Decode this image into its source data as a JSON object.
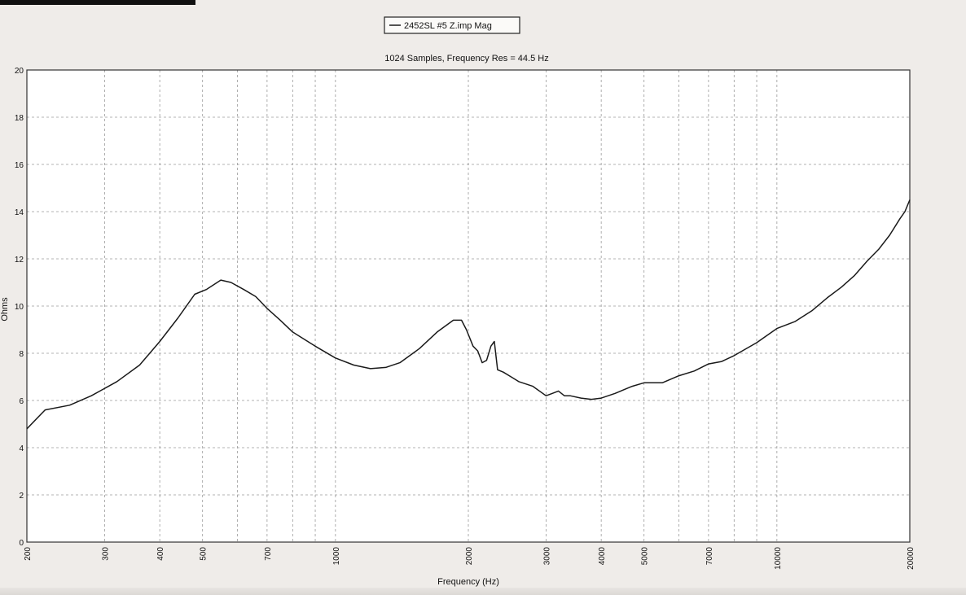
{
  "chart_data": {
    "type": "line",
    "title": "1024 Samples, Frequency Res = 44.5 Hz",
    "legend": {
      "entry": "2452SL #5  Z.imp Mag",
      "placement": "top-center"
    },
    "xlabel": "Frequency (Hz)",
    "ylabel": "Ohms",
    "xscale": "log",
    "xlim": [
      200,
      20000
    ],
    "ylim": [
      0,
      20
    ],
    "grid": true,
    "x_ticks": [
      200,
      300,
      400,
      500,
      700,
      1000,
      2000,
      3000,
      4000,
      5000,
      7000,
      10000,
      20000
    ],
    "x_tick_labels": [
      "200",
      "300",
      "400",
      "500",
      "700",
      "1000",
      "2000",
      "3000",
      "4000",
      "5000",
      "7000",
      "10000",
      "20000"
    ],
    "x_minor_grid": [
      600,
      800,
      900,
      6000,
      8000,
      9000
    ],
    "y_ticks": [
      0,
      2,
      4,
      6,
      8,
      10,
      12,
      14,
      16,
      18,
      20
    ],
    "y_tick_labels": [
      "0",
      "2",
      "4",
      "6",
      "8",
      "10",
      "12",
      "14",
      "16",
      "18",
      "20"
    ],
    "series": [
      {
        "name": "2452SL #5  Z.imp Mag",
        "color": "#1a1a1a",
        "x": [
          200,
          220,
          250,
          280,
          320,
          360,
          400,
          440,
          480,
          510,
          550,
          580,
          620,
          660,
          700,
          750,
          800,
          900,
          1000,
          1100,
          1200,
          1300,
          1400,
          1550,
          1700,
          1850,
          1930,
          1980,
          2050,
          2100,
          2150,
          2200,
          2250,
          2290,
          2330,
          2400,
          2500,
          2600,
          2800,
          3000,
          3100,
          3200,
          3300,
          3400,
          3600,
          3800,
          4000,
          4300,
          4700,
          5000,
          5500,
          6000,
          6500,
          7000,
          7500,
          8000,
          9000,
          10000,
          11000,
          12000,
          13000,
          14000,
          15000,
          16000,
          17000,
          18000,
          19000,
          19500,
          20000
        ],
        "y": [
          4.8,
          5.6,
          5.8,
          6.2,
          6.8,
          7.5,
          8.5,
          9.5,
          10.5,
          10.7,
          11.1,
          11.0,
          10.7,
          10.4,
          9.9,
          9.4,
          8.9,
          8.3,
          7.8,
          7.5,
          7.35,
          7.4,
          7.6,
          8.2,
          8.9,
          9.4,
          9.4,
          9.0,
          8.3,
          8.1,
          7.6,
          7.7,
          8.3,
          8.5,
          7.3,
          7.2,
          7.0,
          6.8,
          6.6,
          6.2,
          6.3,
          6.4,
          6.2,
          6.2,
          6.1,
          6.05,
          6.1,
          6.3,
          6.6,
          6.75,
          6.75,
          7.05,
          7.25,
          7.55,
          7.65,
          7.9,
          8.45,
          9.05,
          9.35,
          9.8,
          10.35,
          10.8,
          11.3,
          11.9,
          12.4,
          13.0,
          13.7,
          14.0,
          14.5
        ]
      }
    ]
  }
}
